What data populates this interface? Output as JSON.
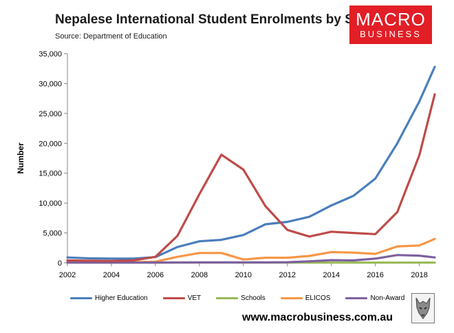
{
  "header": {
    "title": "Nepalese International Student Enrolments by Sector",
    "source": "Source: Department of Education"
  },
  "logo": {
    "line1": "MACRO",
    "line2": "BUSINESS",
    "color": "#e21e26"
  },
  "footer": {
    "url": "www.macrobusiness.com.au"
  },
  "chart_data": {
    "type": "line",
    "title": "Nepalese International Student Enrolments by Sector",
    "xlabel": "",
    "ylabel": "Number",
    "xlim": [
      2002,
      2018.7
    ],
    "ylim": [
      0,
      35000
    ],
    "grid": false,
    "legend_position": "bottom",
    "x_ticks": [
      2002,
      2004,
      2006,
      2008,
      2010,
      2012,
      2014,
      2016,
      2018
    ],
    "x_tick_labels": [
      "2002",
      "2004",
      "2006",
      "2008",
      "2010",
      "2012",
      "2014",
      "2016",
      "2018"
    ],
    "y_ticks": [
      0,
      5000,
      10000,
      15000,
      20000,
      25000,
      30000,
      35000
    ],
    "y_tick_labels": [
      "0",
      "5,000",
      "10,000",
      "15,000",
      "20,000",
      "25,000",
      "30,000",
      "35,000"
    ],
    "x": [
      2002,
      2003,
      2004,
      2005,
      2006,
      2007,
      2008,
      2009,
      2010,
      2011,
      2012,
      2013,
      2014,
      2015,
      2016,
      2017,
      2018
    ],
    "series": [
      {
        "name": "Higher Education",
        "color": "#4a7ebb",
        "values": [
          900,
          750,
          700,
          700,
          950,
          2650,
          3600,
          3850,
          4650,
          6450,
          6850,
          7700,
          9600,
          11200,
          14100,
          20000,
          27000
        ]
      },
      {
        "name": "VET",
        "color": "#be4b48",
        "values": [
          400,
          350,
          300,
          400,
          1000,
          4500,
          11500,
          18100,
          15600,
          9500,
          5500,
          4400,
          5200,
          5000,
          4800,
          8500,
          18000
        ]
      },
      {
        "name": "Schools",
        "color": "#98b954",
        "values": [
          40,
          40,
          40,
          40,
          40,
          40,
          40,
          40,
          40,
          40,
          40,
          40,
          40,
          40,
          40,
          40,
          40
        ]
      },
      {
        "name": "ELICOS",
        "color": "#f79646",
        "values": [
          150,
          150,
          100,
          100,
          200,
          1000,
          1650,
          1650,
          550,
          850,
          850,
          1150,
          1800,
          1700,
          1500,
          2750,
          2900
        ]
      },
      {
        "name": "Non-Award",
        "color": "#7d60a0",
        "values": [
          30,
          30,
          30,
          30,
          50,
          60,
          70,
          70,
          70,
          70,
          100,
          250,
          450,
          400,
          700,
          1300,
          1200
        ]
      }
    ],
    "endpoint": {
      "x": 2018.7,
      "values": {
        "Higher Education": 32800,
        "VET": 28200,
        "Schools": 40,
        "ELICOS": 4000,
        "Non-Award": 900
      }
    }
  }
}
